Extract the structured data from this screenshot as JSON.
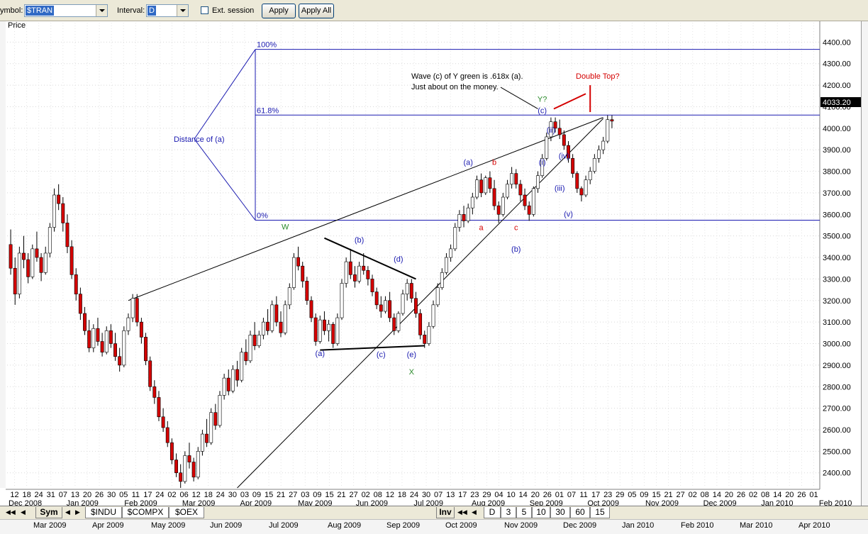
{
  "toolbar": {
    "symbol_label": "ymbol:",
    "symbol_value": "$TRAN",
    "interval_label": "Interval:",
    "interval_value": "D",
    "ext_session_label": "Ext. session",
    "apply_label": "Apply",
    "apply_all_label": "Apply All"
  },
  "panel_title": "Price",
  "chart_data": {
    "type": "candlestick",
    "title": "",
    "ylabel": "Price",
    "ylim": [
      2330,
      4490
    ],
    "y_ticks": [
      2400,
      2500,
      2600,
      2700,
      2800,
      2900,
      3000,
      3100,
      3200,
      3300,
      3400,
      3500,
      3600,
      3700,
      3800,
      3900,
      4000,
      4100,
      4200,
      4300,
      4400
    ],
    "y_tick_labels": [
      "2400.00",
      "2500.00",
      "2600.00",
      "2700.00",
      "2800.00",
      "2900.00",
      "3000.00",
      "3100.00",
      "3200.00",
      "3300.00",
      "3400.00",
      "3500.00",
      "3600.00",
      "3700.00",
      "3800.00",
      "3900.00",
      "4000.00",
      "4100.00",
      "4200.00",
      "4300.00",
      "4400.00"
    ],
    "last_price_label": "4033.20",
    "last_price": 4033.2,
    "x_day_labels": [
      "12",
      "18",
      "24",
      "31",
      "07",
      "13",
      "20",
      "26",
      "30",
      "05",
      "11",
      "17",
      "24",
      "02",
      "06",
      "12",
      "18",
      "24",
      "30",
      "03",
      "09",
      "15",
      "21",
      "27",
      "03",
      "09",
      "15",
      "21",
      "27",
      "02",
      "08",
      "12",
      "18",
      "24",
      "30",
      "07",
      "13",
      "17",
      "23",
      "29",
      "04",
      "10",
      "14",
      "20",
      "26",
      "01",
      "07",
      "11",
      "17",
      "23",
      "29",
      "05",
      "09",
      "15",
      "21",
      "27",
      "02",
      "08",
      "14",
      "20",
      "26",
      "02",
      "08",
      "14",
      "20",
      "26",
      "01"
    ],
    "x_month_labels": [
      "Dec 2008",
      "Jan 2009",
      "Feb 2009",
      "Mar 2009",
      "Apr 2009",
      "May 2009",
      "Jun 2009",
      "Jul 2009",
      "Aug 2009",
      "Sep 2009",
      "Oct 2009",
      "Nov 2009",
      "Dec 2009",
      "Jan 2010",
      "Feb 2010"
    ],
    "series": [
      {
        "values": [
          [
            3460,
            3530,
            3320,
            3350
          ],
          [
            3350,
            3400,
            3180,
            3230
          ],
          [
            3230,
            3450,
            3210,
            3420
          ],
          [
            3420,
            3500,
            3350,
            3390
          ],
          [
            3390,
            3420,
            3280,
            3310
          ],
          [
            3310,
            3460,
            3300,
            3440
          ],
          [
            3440,
            3520,
            3380,
            3400
          ],
          [
            3400,
            3420,
            3290,
            3330
          ],
          [
            3330,
            3450,
            3320,
            3420
          ],
          [
            3420,
            3560,
            3400,
            3540
          ],
          [
            3540,
            3720,
            3520,
            3690
          ],
          [
            3690,
            3740,
            3620,
            3650
          ],
          [
            3650,
            3680,
            3520,
            3560
          ],
          [
            3560,
            3600,
            3420,
            3450
          ],
          [
            3450,
            3480,
            3300,
            3320
          ],
          [
            3320,
            3350,
            3200,
            3230
          ],
          [
            3230,
            3260,
            3110,
            3140
          ],
          [
            3140,
            3170,
            3040,
            3060
          ],
          [
            3060,
            3110,
            2960,
            2980
          ],
          [
            2980,
            3090,
            2960,
            3070
          ],
          [
            3070,
            3120,
            2990,
            3010
          ],
          [
            3010,
            3050,
            2940,
            2960
          ],
          [
            2960,
            3080,
            2950,
            3060
          ],
          [
            3060,
            3090,
            2980,
            3000
          ],
          [
            3000,
            3050,
            2920,
            2940
          ],
          [
            2940,
            2980,
            2870,
            2900
          ],
          [
            2900,
            3080,
            2890,
            3060
          ],
          [
            3060,
            3140,
            3040,
            3120
          ],
          [
            3120,
            3230,
            3100,
            3210
          ],
          [
            3210,
            3230,
            3080,
            3100
          ],
          [
            3100,
            3120,
            3000,
            3030
          ],
          [
            3030,
            3050,
            2900,
            2920
          ],
          [
            2920,
            2940,
            2780,
            2800
          ],
          [
            2800,
            2830,
            2720,
            2750
          ],
          [
            2750,
            2780,
            2640,
            2660
          ],
          [
            2660,
            2700,
            2590,
            2610
          ],
          [
            2610,
            2640,
            2520,
            2540
          ],
          [
            2540,
            2560,
            2440,
            2460
          ],
          [
            2460,
            2490,
            2380,
            2400
          ],
          [
            2400,
            2440,
            2330,
            2360
          ],
          [
            2360,
            2500,
            2350,
            2480
          ],
          [
            2480,
            2540,
            2420,
            2450
          ],
          [
            2450,
            2470,
            2360,
            2380
          ],
          [
            2380,
            2520,
            2370,
            2500
          ],
          [
            2500,
            2600,
            2480,
            2580
          ],
          [
            2580,
            2650,
            2520,
            2540
          ],
          [
            2540,
            2700,
            2530,
            2680
          ],
          [
            2680,
            2720,
            2600,
            2620
          ],
          [
            2620,
            2780,
            2610,
            2760
          ],
          [
            2760,
            2860,
            2740,
            2840
          ],
          [
            2840,
            2880,
            2760,
            2780
          ],
          [
            2780,
            2900,
            2770,
            2880
          ],
          [
            2880,
            2920,
            2800,
            2830
          ],
          [
            2830,
            2980,
            2820,
            2960
          ],
          [
            2960,
            3020,
            2900,
            2920
          ],
          [
            2920,
            3060,
            2910,
            3040
          ],
          [
            3040,
            3100,
            2970,
            2990
          ],
          [
            2990,
            3060,
            2980,
            3040
          ],
          [
            3040,
            3120,
            3020,
            3100
          ],
          [
            3100,
            3160,
            3040,
            3060
          ],
          [
            3060,
            3200,
            3050,
            3180
          ],
          [
            3180,
            3220,
            3080,
            3100
          ],
          [
            3100,
            3150,
            3030,
            3050
          ],
          [
            3050,
            3200,
            3040,
            3180
          ],
          [
            3180,
            3280,
            3160,
            3260
          ],
          [
            3260,
            3420,
            3250,
            3400
          ],
          [
            3400,
            3450,
            3340,
            3360
          ],
          [
            3360,
            3380,
            3260,
            3290
          ],
          [
            3290,
            3310,
            3180,
            3200
          ],
          [
            3200,
            3220,
            3100,
            3120
          ],
          [
            3120,
            3140,
            2990,
            3010
          ],
          [
            3010,
            3130,
            3000,
            3110
          ],
          [
            3110,
            3150,
            3040,
            3060
          ],
          [
            3060,
            3110,
            3010,
            3090
          ],
          [
            3090,
            3100,
            2980,
            3000
          ],
          [
            3000,
            3140,
            2990,
            3120
          ],
          [
            3120,
            3300,
            3110,
            3280
          ],
          [
            3280,
            3400,
            3260,
            3380
          ],
          [
            3380,
            3440,
            3300,
            3320
          ],
          [
            3320,
            3360,
            3260,
            3290
          ],
          [
            3290,
            3380,
            3280,
            3360
          ],
          [
            3360,
            3420,
            3320,
            3340
          ],
          [
            3340,
            3360,
            3270,
            3300
          ],
          [
            3300,
            3320,
            3220,
            3240
          ],
          [
            3240,
            3260,
            3160,
            3180
          ],
          [
            3180,
            3220,
            3120,
            3150
          ],
          [
            3150,
            3220,
            3140,
            3200
          ],
          [
            3200,
            3240,
            3100,
            3120
          ],
          [
            3120,
            3140,
            3040,
            3060
          ],
          [
            3060,
            3150,
            3050,
            3140
          ],
          [
            3140,
            3250,
            3130,
            3230
          ],
          [
            3230,
            3300,
            3200,
            3280
          ],
          [
            3280,
            3300,
            3190,
            3210
          ],
          [
            3210,
            3240,
            3120,
            3140
          ],
          [
            3140,
            3160,
            3020,
            3040
          ],
          [
            3040,
            3060,
            2980,
            3000
          ],
          [
            3000,
            3100,
            2990,
            3080
          ],
          [
            3080,
            3200,
            3070,
            3180
          ],
          [
            3180,
            3280,
            3170,
            3260
          ],
          [
            3260,
            3350,
            3250,
            3330
          ],
          [
            3330,
            3420,
            3320,
            3400
          ],
          [
            3400,
            3460,
            3380,
            3440
          ],
          [
            3440,
            3560,
            3430,
            3540
          ],
          [
            3540,
            3620,
            3520,
            3600
          ],
          [
            3600,
            3640,
            3540,
            3570
          ],
          [
            3570,
            3650,
            3560,
            3630
          ],
          [
            3630,
            3700,
            3600,
            3680
          ],
          [
            3680,
            3780,
            3670,
            3760
          ],
          [
            3760,
            3790,
            3680,
            3700
          ],
          [
            3700,
            3780,
            3690,
            3770
          ],
          [
            3770,
            3800,
            3700,
            3720
          ],
          [
            3720,
            3760,
            3620,
            3640
          ],
          [
            3640,
            3660,
            3560,
            3600
          ],
          [
            3600,
            3700,
            3590,
            3680
          ],
          [
            3680,
            3760,
            3670,
            3740
          ],
          [
            3740,
            3820,
            3720,
            3790
          ],
          [
            3790,
            3810,
            3720,
            3740
          ],
          [
            3740,
            3760,
            3660,
            3690
          ],
          [
            3690,
            3720,
            3620,
            3640
          ],
          [
            3640,
            3660,
            3570,
            3600
          ],
          [
            3600,
            3730,
            3590,
            3720
          ],
          [
            3720,
            3800,
            3700,
            3780
          ],
          [
            3780,
            3880,
            3770,
            3860
          ],
          [
            3860,
            3980,
            3850,
            3960
          ],
          [
            3960,
            4050,
            3940,
            4030
          ],
          [
            4030,
            4050,
            3980,
            4000
          ],
          [
            4000,
            4040,
            3950,
            3970
          ],
          [
            3970,
            3990,
            3900,
            3920
          ],
          [
            3920,
            3940,
            3840,
            3860
          ],
          [
            3860,
            3880,
            3770,
            3790
          ],
          [
            3790,
            3800,
            3700,
            3720
          ],
          [
            3720,
            3730,
            3660,
            3690
          ],
          [
            3690,
            3780,
            3680,
            3760
          ],
          [
            3760,
            3820,
            3740,
            3800
          ],
          [
            3800,
            3880,
            3790,
            3860
          ],
          [
            3860,
            3920,
            3840,
            3900
          ],
          [
            3900,
            3960,
            3880,
            3940
          ],
          [
            3940,
            4060,
            3930,
            4040
          ],
          [
            4040,
            4060,
            4000,
            4033
          ]
        ]
      }
    ],
    "horizontal_lines": [
      {
        "label": "100%",
        "value": 4366
      },
      {
        "label": "61.8%",
        "value": 4061
      },
      {
        "label": "0%",
        "value": 3573
      }
    ],
    "annotations": {
      "wave_note_line1": "Wave (c) of Y green is .618x (a).",
      "wave_note_line2": "Just about on the money.",
      "double_top": "Double Top?",
      "distance": "Distance of (a)",
      "w": "W",
      "x": "X",
      "y_q": "Y?",
      "a1": "(a)",
      "b1": "(b)",
      "c1": "(c)",
      "d1": "(d)",
      "e1": "(e)",
      "a2": "(a)",
      "b2": "b",
      "c2": "(c)",
      "a_red": "a",
      "c_red": "c",
      "b3": "(b)",
      "i": "(i)",
      "ii": "(ii)",
      "iii": "(iii)",
      "iv": "(iv)",
      "v": "(v)"
    },
    "colors": {
      "up": "#ffffff",
      "down": "#d40000",
      "outline": "#000000",
      "fib": "#1a1ab0",
      "annot_blue": "#1a1ab0",
      "annot_red": "#d40000",
      "annot_green": "#2a8a2a"
    }
  },
  "tabs": {
    "sym": "Sym",
    "indu": "$INDU",
    "compx": "$COMPX",
    "oex": "$OEX",
    "inv": "Inv",
    "d": "D",
    "t3": "3",
    "t5": "5",
    "t10": "10",
    "t30": "30",
    "t60": "60",
    "t15": "15"
  },
  "footer_months": [
    "Mar 2009",
    "Apr 2009",
    "May 2009",
    "Jun 2009",
    "Jul 2009",
    "Aug 2009",
    "Sep 2009",
    "Oct 2009",
    "Nov 2009",
    "Dec 2009",
    "Jan 2010",
    "Feb 2010",
    "Mar 2010",
    "Apr 2010"
  ]
}
